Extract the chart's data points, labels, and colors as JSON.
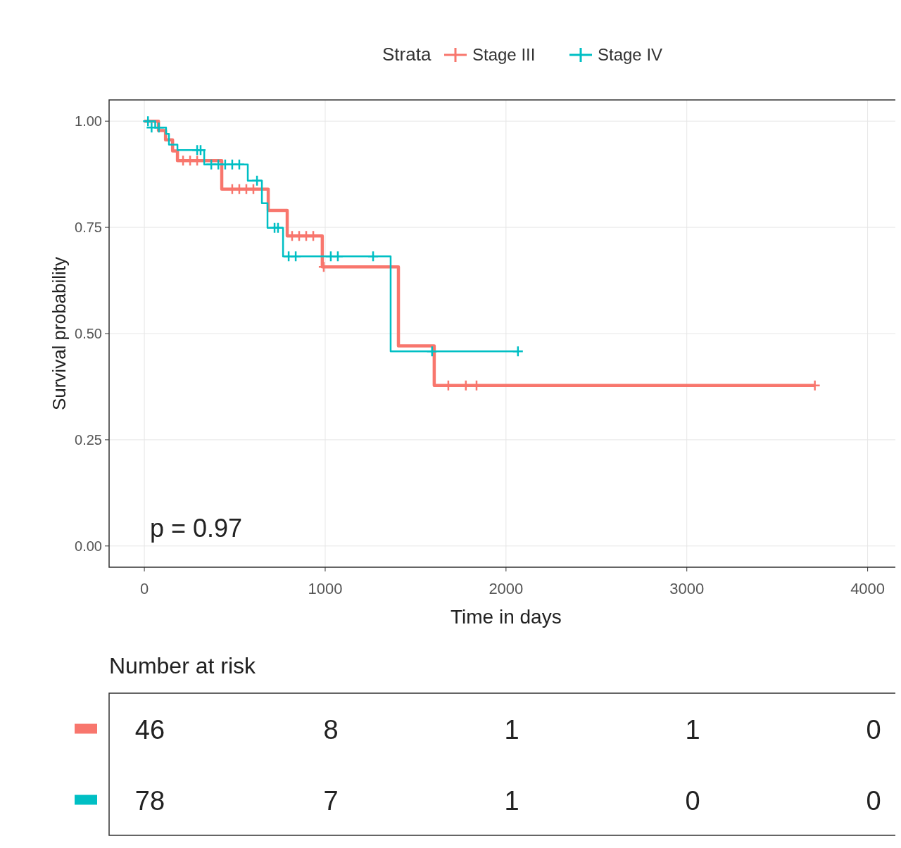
{
  "chart_data": [
    {
      "type": "step",
      "xlabel": "Time in days",
      "ylabel": "Survival probability",
      "legend_title": "Strata",
      "legend": "top",
      "grid": true,
      "xlim": [
        -195,
        4165
      ],
      "xticks": [
        0,
        1000,
        2000,
        3000,
        4000
      ],
      "ylim": [
        -0.05,
        1.05
      ],
      "yticks": [
        {
          "value": 0,
          "label": "0.00"
        },
        {
          "value": 0.25,
          "label": "0.25"
        },
        {
          "value": 0.5,
          "label": "0.50"
        },
        {
          "value": 0.75,
          "label": "0.75"
        },
        {
          "value": 1,
          "label": "1.00"
        }
      ],
      "annotations": [
        "p = 0.97"
      ],
      "series": [
        {
          "name": "Stage III",
          "color": "#f8766d",
          "type": "step",
          "x": [
            0,
            78,
            117,
            156,
            183,
            428,
            685,
            790,
            984,
            1405,
            1603,
            3708
          ],
          "values": [
            1,
            0.978,
            0.956,
            0.93,
            0.907,
            0.84,
            0.79,
            0.73,
            0.657,
            0.471,
            0.378,
            0.378
          ]
        },
        {
          "name": "Stage IV",
          "color": "#00bfc4",
          "type": "step",
          "x": [
            0,
            60,
            120,
            136,
            183,
            331,
            572,
            650,
            681,
            767,
            1362,
            2066
          ],
          "values": [
            1,
            0.985,
            0.97,
            0.945,
            0.932,
            0.898,
            0.86,
            0.807,
            0.749,
            0.682,
            0.458,
            0.458
          ]
        },
        {
          "color": "#f8766d",
          "type": "scatter",
          "marker": "cross",
          "x": [
            214,
            253,
            292,
            486,
            525,
            564,
            603,
            817,
            856,
            895,
            934,
            992,
            1681,
            1778,
            1837,
            3708
          ],
          "values": [
            0.907,
            0.907,
            0.907,
            0.84,
            0.84,
            0.84,
            0.84,
            0.73,
            0.73,
            0.73,
            0.73,
            0.657,
            0.378,
            0.378,
            0.378,
            0.378
          ]
        },
        {
          "color": "#00bfc4",
          "type": "scatter",
          "marker": "cross",
          "x": [
            20,
            40,
            80,
            292,
            311,
            370,
            409,
            447,
            486,
            525,
            623,
            720,
            739,
            798,
            837,
            1031,
            1070,
            1265,
            1591,
            2066
          ],
          "values": [
            1,
            0.985,
            0.985,
            0.932,
            0.932,
            0.898,
            0.898,
            0.898,
            0.898,
            0.898,
            0.86,
            0.749,
            0.749,
            0.682,
            0.682,
            0.682,
            0.682,
            0.682,
            0.458,
            0.458
          ]
        }
      ]
    },
    {
      "type": "heatmap",
      "title": "Number at risk",
      "categories": [
        null,
        null,
        null,
        null,
        null
      ],
      "y_categories": [
        null,
        null
      ],
      "data_labels": true,
      "colors": [
        "#f8766d",
        "#00bfc4"
      ],
      "cells": [
        [
          46,
          8,
          1,
          1,
          0
        ],
        [
          78,
          7,
          1,
          0,
          0
        ]
      ]
    }
  ]
}
